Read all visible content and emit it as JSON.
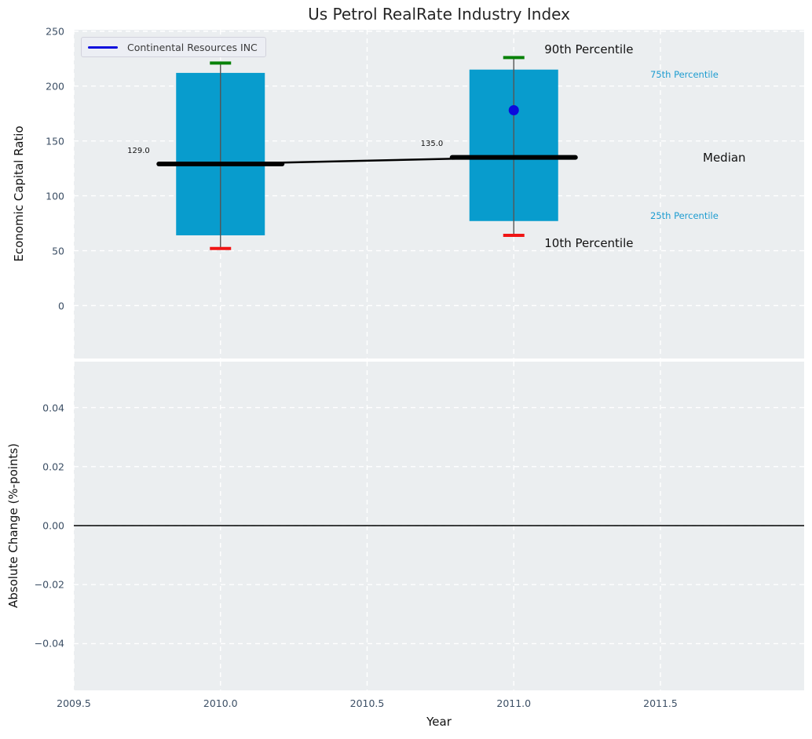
{
  "title": "Us Petrol RealRate Industry Index",
  "legend": {
    "label": "Continental Resources INC"
  },
  "annotations": {
    "p90": "90th Percentile",
    "p75": "75th Percentile",
    "median": "Median",
    "p25": "25th Percentile",
    "p10": "10th Percentile"
  },
  "colors": {
    "plot_bg": "#ebeef0",
    "grid": "#ffffff",
    "box_fill": "#089ccd",
    "median_line": "#000000",
    "whisker": "#555555",
    "cap_top": "#098209",
    "cap_bottom": "#f01414",
    "company": "#0b0bdd",
    "tick_label": "#3c4f65",
    "annotation_accent": "#1e9cd0",
    "zero_line": "#000000"
  },
  "chart_data": [
    {
      "type": "box-percentile",
      "ylabel": "Economic Capital Ratio",
      "xlabel": "",
      "xlim": [
        2009.5,
        2011.99
      ],
      "ylim": [
        -50,
        251
      ],
      "grid": true,
      "legend_position": "upper left",
      "xticks": [
        2009.5,
        2010.0,
        2010.5,
        2011.0,
        2011.5
      ],
      "xtick_labels": [
        "2009.5",
        "2010.0",
        "2010.5",
        "2011.0",
        "2011.5"
      ],
      "yticks": [
        0,
        50,
        100,
        150,
        200,
        250
      ],
      "ytick_labels": [
        "0",
        "50",
        "100",
        "150",
        "200",
        "250"
      ],
      "boxes": [
        {
          "x": 2010,
          "p10": 52,
          "p25": 64,
          "median": 129,
          "p75": 212,
          "p90": 221,
          "label": "129.0"
        },
        {
          "x": 2011,
          "p10": 64,
          "p25": 77,
          "median": 135,
          "p75": 215,
          "p90": 226,
          "label": "135.0",
          "company_point": 178
        }
      ],
      "series": [
        {
          "name": "90th Percentile",
          "x": [
            2010,
            2011
          ],
          "values": [
            221,
            226
          ]
        },
        {
          "name": "75th Percentile",
          "x": [
            2010,
            2011
          ],
          "values": [
            212,
            215
          ]
        },
        {
          "name": "Median",
          "x": [
            2010,
            2011
          ],
          "values": [
            129,
            135
          ]
        },
        {
          "name": "25th Percentile",
          "x": [
            2010,
            2011
          ],
          "values": [
            64,
            77
          ]
        },
        {
          "name": "10th Percentile",
          "x": [
            2010,
            2011
          ],
          "values": [
            52,
            64
          ]
        },
        {
          "name": "Continental Resources INC",
          "x": [
            2011
          ],
          "values": [
            178
          ]
        }
      ]
    },
    {
      "type": "line",
      "ylabel": "Absolute Change (%-points)",
      "xlabel": "Year",
      "xlim": [
        2009.5,
        2011.99
      ],
      "ylim": [
        -0.0557,
        0.0557
      ],
      "grid": true,
      "xticks": [
        2009.5,
        2010.0,
        2010.5,
        2011.0,
        2011.5
      ],
      "xtick_labels": [
        "2009.5",
        "2010.0",
        "2010.5",
        "2011.0",
        "2011.5"
      ],
      "yticks": [
        0.04,
        0.02,
        0.0,
        -0.02,
        -0.04
      ],
      "ytick_labels": [
        "0.04",
        "0.02",
        "0.00",
        "−0.02",
        "−0.04"
      ],
      "series": [],
      "zero_line": 0.0
    }
  ]
}
